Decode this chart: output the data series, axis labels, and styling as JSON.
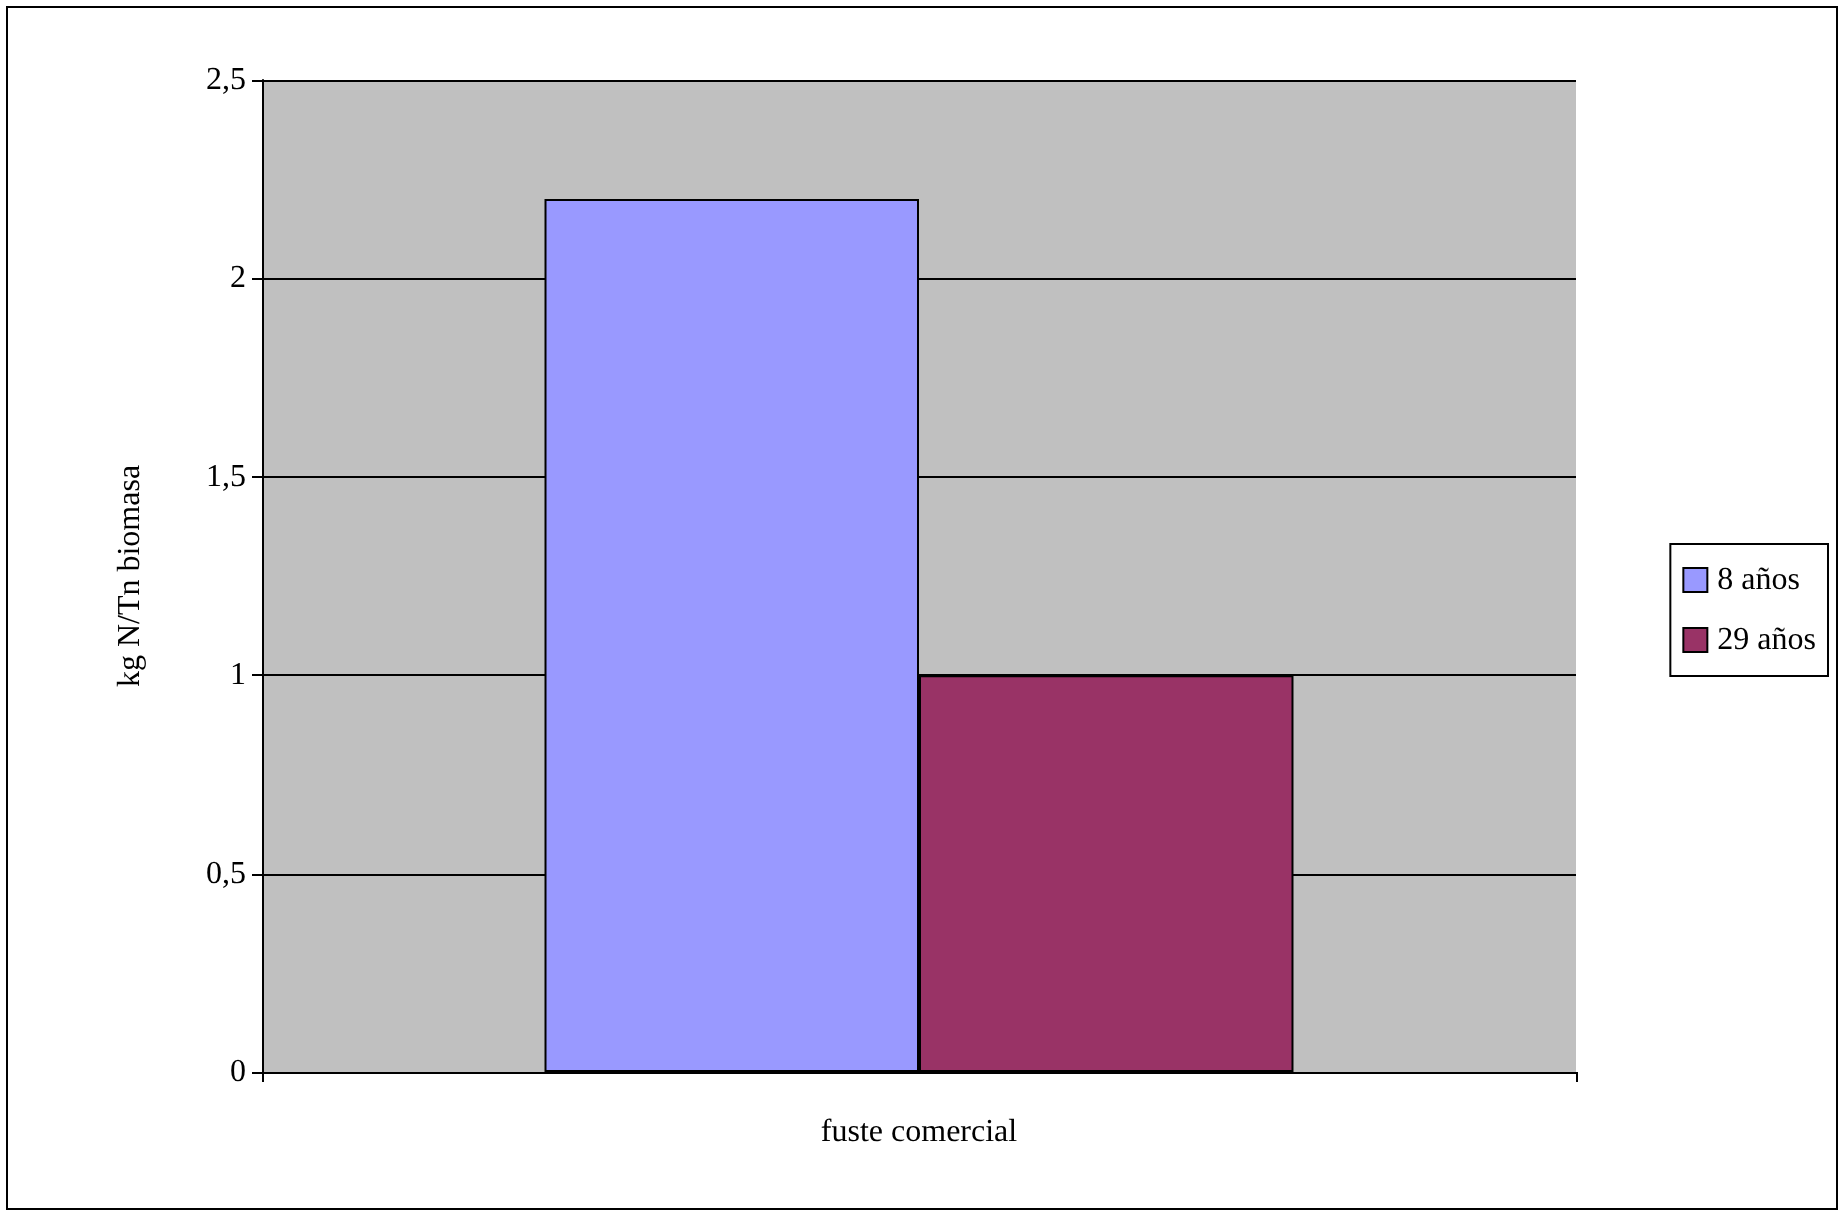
{
  "chart_data": {
    "type": "bar",
    "ylabel": "kg N/Tn biomasa",
    "categories": [
      "fuste comercial"
    ],
    "series": [
      {
        "name": "8 años",
        "color": "#9999ff",
        "values": [
          2.2
        ]
      },
      {
        "name": "29 años",
        "color": "#993366",
        "values": [
          1.0
        ]
      }
    ],
    "ylim": [
      0,
      2.5
    ],
    "yticks": [
      0,
      {
        "value": 0.5,
        "label": "0,5"
      },
      1,
      {
        "value": 1.5,
        "label": "1,5"
      },
      2,
      {
        "value": 2.5,
        "label": "2,5"
      }
    ],
    "grid": "y",
    "legend": "right"
  }
}
